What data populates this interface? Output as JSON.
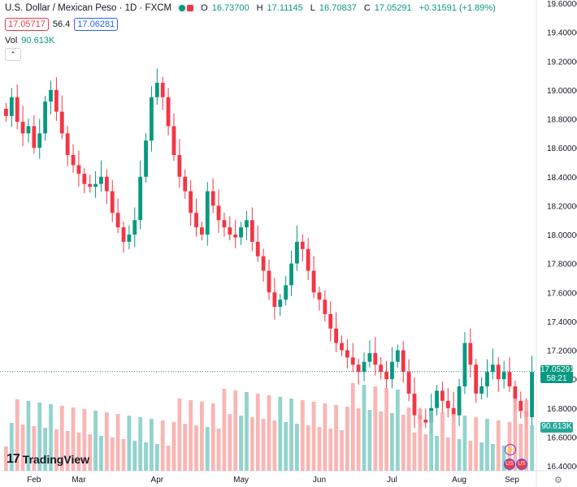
{
  "legend": {
    "title": "U.S. Dollar / Mexican Peso · 1D · FXCM",
    "open_label": "O",
    "open_value": "16.73700",
    "high_label": "H",
    "high_value": "17.11145",
    "low_label": "L",
    "low_value": "16.70837",
    "close_label": "C",
    "close_value": "17.05291",
    "change": "+0.31591 (+1.89%)",
    "sell_price": "17.05717",
    "spread": "56.4",
    "buy_price": "17.06281",
    "vol_label": "Vol",
    "vol_value": "90.613K"
  },
  "price_scale": {
    "last_price": "17.05291",
    "countdown": "58:21",
    "volume": "90.613K"
  },
  "brand": {
    "name": "TradingView"
  },
  "colors": {
    "up": "#089981",
    "down": "#f23645",
    "vol_up": "#80cbc4",
    "vol_down": "#f7a9a7"
  },
  "chart_data": {
    "type": "candlestick",
    "symbol": "USDMXN",
    "interval": "1D",
    "y_axis_ticks": [
      "19.60000",
      "19.40000",
      "19.20000",
      "19.00000",
      "18.80000",
      "18.60000",
      "18.40000",
      "18.20000",
      "18.00000",
      "17.80000",
      "17.60000",
      "17.40000",
      "17.20000",
      "17.00000",
      "16.80000",
      "16.60000",
      "16.40000"
    ],
    "ylim": [
      16.4,
      19.6
    ],
    "x_axis_ticks": [
      "Feb",
      "Mar",
      "Apr",
      "May",
      "Jun",
      "Jul",
      "Aug",
      "Sep"
    ],
    "close_path": [
      18.82,
      18.95,
      18.78,
      18.7,
      18.75,
      18.6,
      18.7,
      18.92,
      19.0,
      18.85,
      18.7,
      18.55,
      18.48,
      18.42,
      18.35,
      18.33,
      18.35,
      18.4,
      18.3,
      18.15,
      18.05,
      17.95,
      18.0,
      18.1,
      18.4,
      18.65,
      18.95,
      19.05,
      18.95,
      18.75,
      18.55,
      18.4,
      18.3,
      18.15,
      18.05,
      18.0,
      18.3,
      18.2,
      18.1,
      18.05,
      18.0,
      17.98,
      18.05,
      18.1,
      17.95,
      17.85,
      17.75,
      17.6,
      17.5,
      17.55,
      17.65,
      17.8,
      17.95,
      17.9,
      17.75,
      17.6,
      17.55,
      17.45,
      17.35,
      17.25,
      17.2,
      17.15,
      17.1,
      17.05,
      17.12,
      17.18,
      17.1,
      17.05,
      17.0,
      17.12,
      17.2,
      17.05,
      16.9,
      16.75,
      16.72,
      16.7,
      16.8,
      16.92,
      16.85,
      16.8,
      16.75,
      16.95,
      17.25,
      17.1,
      16.9,
      16.95,
      17.05,
      17.1,
      17.0,
      17.05,
      16.95,
      16.85,
      16.78,
      16.74,
      17.05
    ],
    "last_volume": "90.613K"
  }
}
